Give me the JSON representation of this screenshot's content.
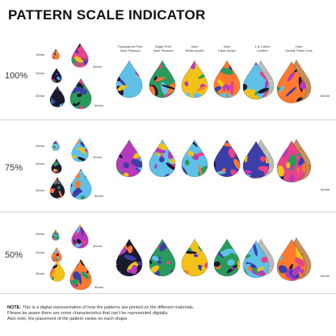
{
  "title": "PATTERN SCALE INDICATOR",
  "sizes": [
    "15mm",
    "20mm",
    "30mm",
    "40mm",
    "50mm",
    "60mm"
  ],
  "materials": [
    {
      "line1": "Transparent Print",
      "line2": "3mm Plywood"
    },
    {
      "line1": "Bright Print",
      "line2": "3mm Plywood"
    },
    {
      "line1": "3mm",
      "line2": "White Acrylic"
    },
    {
      "line1": "3mm",
      "line2": "Clear Acrylic"
    },
    {
      "line1": "1.6-1.8mm",
      "line2": "Leather"
    },
    {
      "line1": "2mm",
      "line2": "Double Sided Cork"
    }
  ],
  "scales": [
    {
      "label": "100%"
    },
    {
      "label": "75%"
    },
    {
      "label": "50%"
    }
  ],
  "note": {
    "heading": "NOTE:",
    "line1": "This is a digital representation of how the patterns are printed on the different materials.",
    "line2": "Please be aware there are some characteristics that can't be represented digitally.",
    "line3": "Also note, the placement of the pattern varies on each shape."
  },
  "colors": {
    "pattern": [
      "#f2c218",
      "#e8428a",
      "#2a9a5c",
      "#3c3fa8",
      "#ff7a2e",
      "#1a1a2e",
      "#5fc0e8",
      "#b43bbd"
    ],
    "leather": "#b9b9b4",
    "cork": "#c68f5a",
    "divider": "#d3d3d3"
  }
}
